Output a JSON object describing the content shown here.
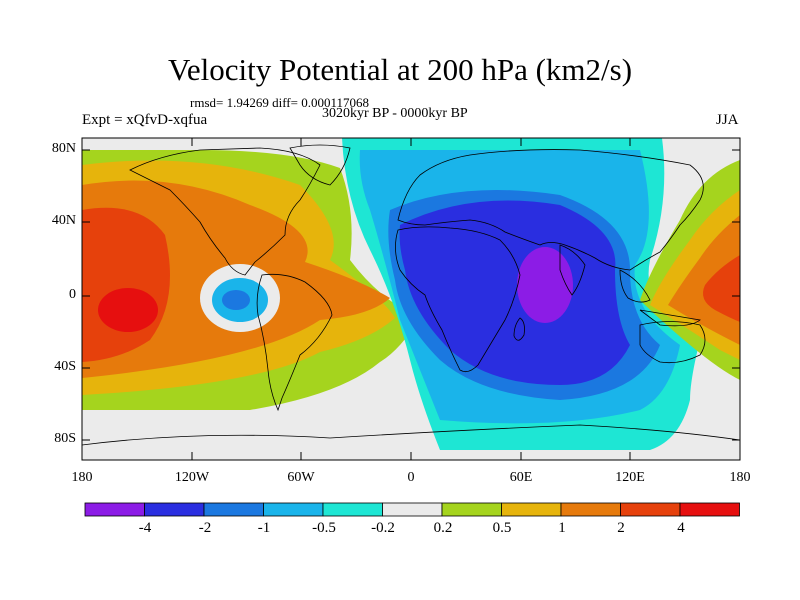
{
  "title": "Velocity Potential at 200 hPa (km2/s)",
  "stats": "rmsd= 1.94269 diff= 0.000117068",
  "period": "3020kyr BP - 0000kyr BP",
  "experiment": "Expt = xQfvD-xqfua",
  "season": "JJA",
  "lat_labels": [
    "80N",
    "40N",
    "0",
    "40S",
    "80S"
  ],
  "lon_labels": [
    "180",
    "120W",
    "60W",
    "0",
    "60E",
    "120E",
    "180"
  ],
  "colorbar": {
    "labels": [
      "-4",
      "-2",
      "-1",
      "-0.5",
      "-0.2",
      "0.2",
      "0.5",
      "1",
      "2",
      "4"
    ],
    "colors": [
      "#8c1ce6",
      "#2a2ee0",
      "#1b78e0",
      "#1ab4ea",
      "#1ee6d4",
      "#ebebeb",
      "#a5d41e",
      "#e6b40c",
      "#e67a0c",
      "#e6410c",
      "#e60f0f"
    ]
  }
}
